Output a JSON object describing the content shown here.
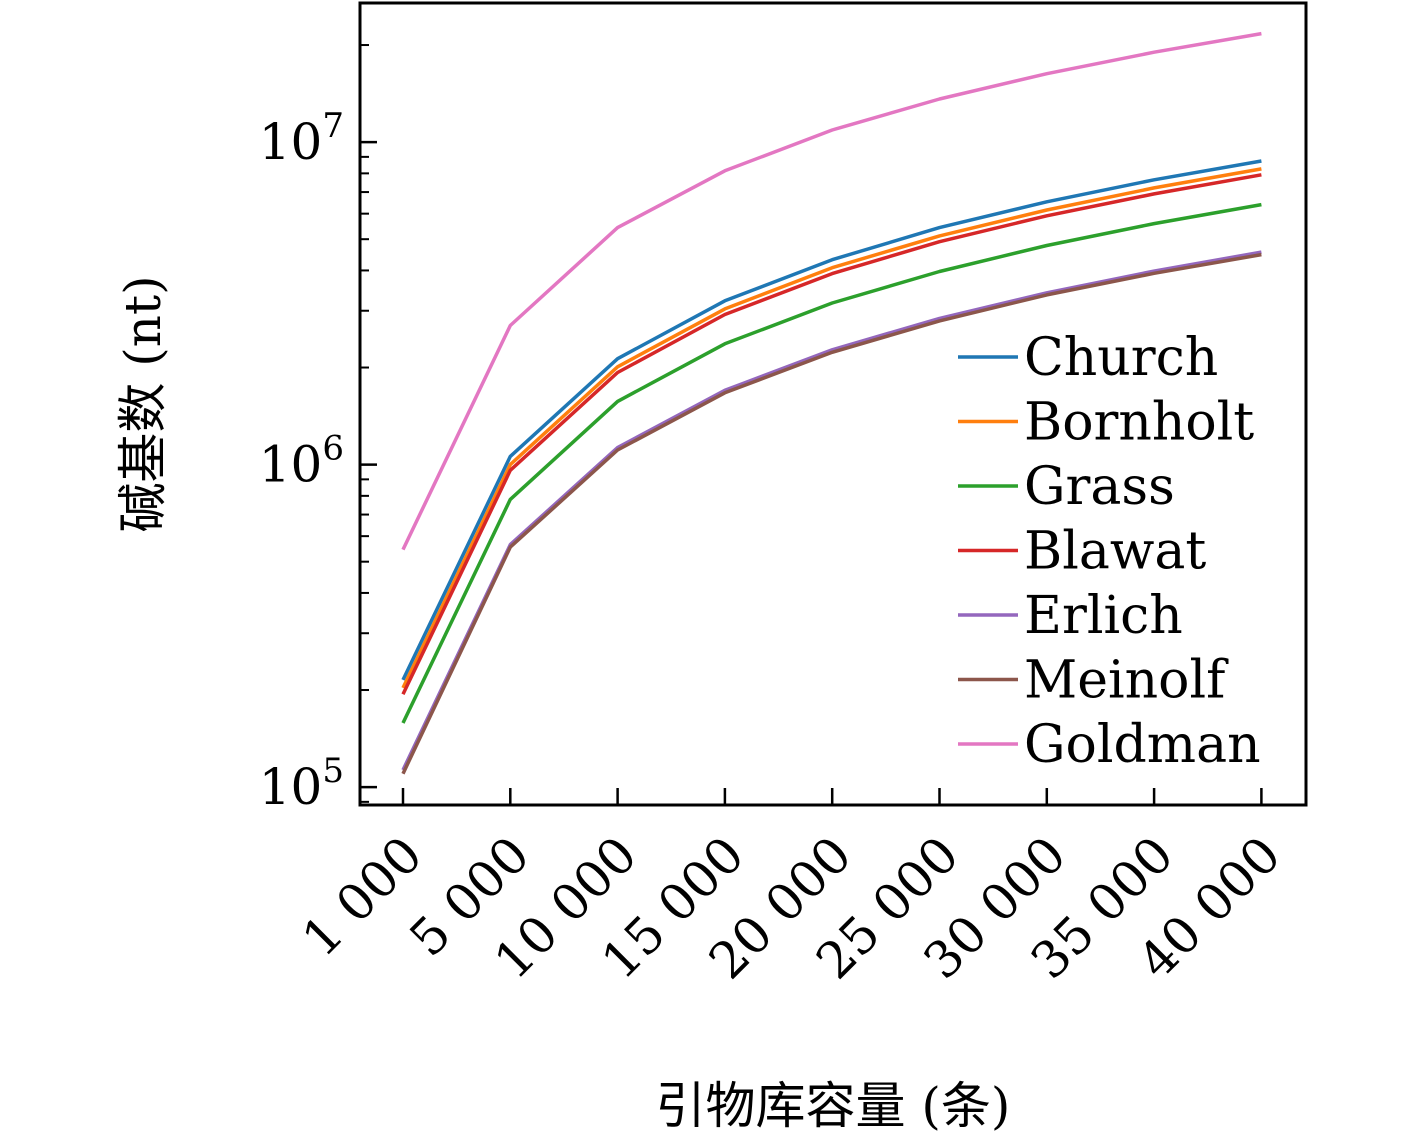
{
  "chart_data": {
    "type": "line",
    "xlabel": "引物库容量 (条)",
    "ylabel": "碱基数 (nt)",
    "y_scale": "log",
    "ylim": [
      88000,
      27000000
    ],
    "grid": false,
    "legend_position": "lower-right",
    "categories": [
      "1 000",
      "5 000",
      "10 000",
      "15 000",
      "20 000",
      "25 000",
      "30 000",
      "35 000",
      "40 000"
    ],
    "y_ticks": [
      {
        "value": 100000,
        "base": "10",
        "exp": "5"
      },
      {
        "value": 1000000,
        "base": "10",
        "exp": "6"
      },
      {
        "value": 10000000,
        "base": "10",
        "exp": "7"
      }
    ],
    "series": [
      {
        "name": "Church",
        "color": "#1f77b4",
        "values": [
          215000,
          1060000,
          2130000,
          3220000,
          4320000,
          5430000,
          6530000,
          7640000,
          8740000
        ]
      },
      {
        "name": "Bornholt",
        "color": "#ff7f0e",
        "values": [
          203000,
          1000000,
          2010000,
          3040000,
          4080000,
          5120000,
          6160000,
          7210000,
          8260000
        ]
      },
      {
        "name": "Grass",
        "color": "#2ca02c",
        "values": [
          158000,
          780000,
          1570000,
          2370000,
          3170000,
          3970000,
          4780000,
          5590000,
          6400000
        ]
      },
      {
        "name": "Blawat",
        "color": "#d62728",
        "values": [
          194000,
          960000,
          1930000,
          2920000,
          3910000,
          4910000,
          5910000,
          6910000,
          7920000
        ]
      },
      {
        "name": "Erlich",
        "color": "#9467bd",
        "values": [
          113000,
          565000,
          1130000,
          1700000,
          2270000,
          2840000,
          3410000,
          3980000,
          4560000
        ]
      },
      {
        "name": "Meinolf",
        "color": "#8c564b",
        "values": [
          110000,
          555000,
          1110000,
          1670000,
          2230000,
          2790000,
          3360000,
          3920000,
          4480000
        ]
      },
      {
        "name": "Goldman",
        "color": "#e377c2",
        "values": [
          545000,
          2700000,
          5430000,
          8150000,
          10900000,
          13600000,
          16300000,
          19000000,
          21700000
        ]
      }
    ]
  }
}
